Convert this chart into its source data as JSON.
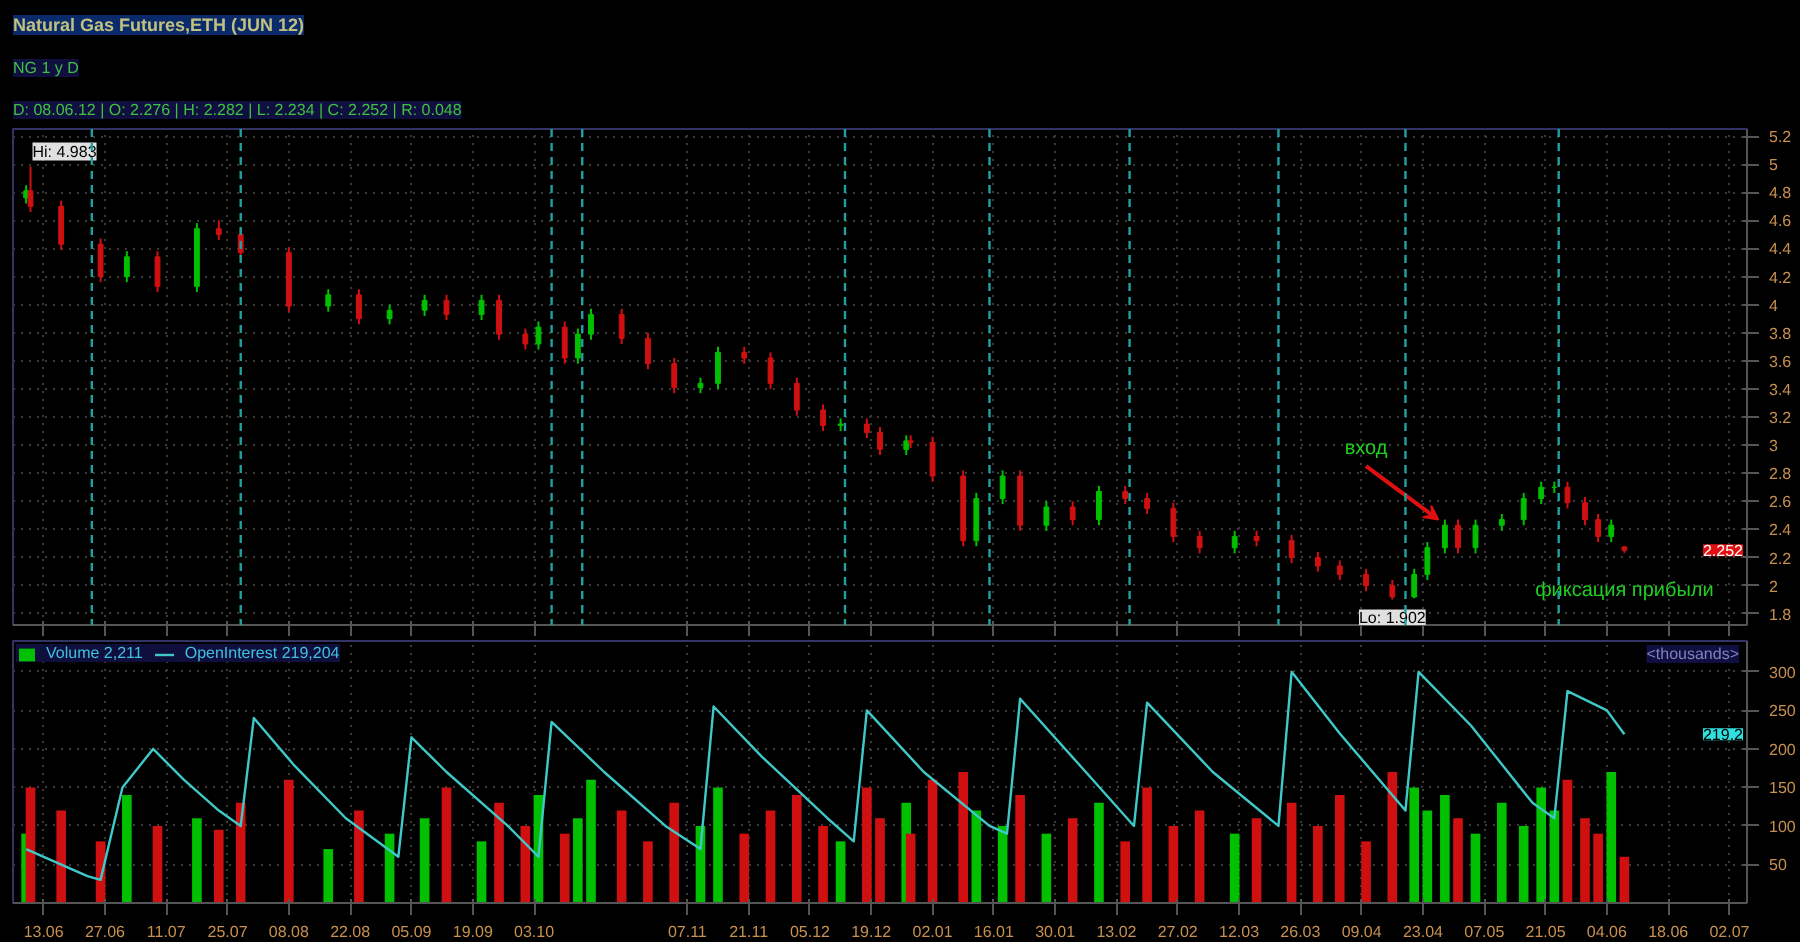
{
  "chart_data": [
    {
      "type": "candlestick",
      "title": "Natural Gas Futures,ETH (JUN 12)",
      "x": [
        "2011-06-09",
        "2011-06-10",
        "2011-06-17",
        "2011-06-26",
        "2011-07-02",
        "2011-07-09",
        "2011-07-18",
        "2011-07-23",
        "2011-07-28",
        "2011-08-08",
        "2011-08-17",
        "2011-08-24",
        "2011-08-31",
        "2011-09-08",
        "2011-09-13",
        "2011-09-21",
        "2011-09-25",
        "2011-10-01",
        "2011-10-04",
        "2011-10-10",
        "2011-10-13",
        "2011-10-16",
        "2011-10-23",
        "2011-10-29",
        "2011-11-04",
        "2011-11-10",
        "2011-11-14",
        "2011-11-20",
        "2011-11-26",
        "2011-12-02",
        "2011-12-08",
        "2011-12-12",
        "2011-12-18",
        "2011-12-21",
        "2011-12-27",
        "2011-12-28",
        "2012-01-02",
        "2012-01-09",
        "2012-01-12",
        "2012-01-18",
        "2012-01-22",
        "2012-01-28",
        "2012-02-03",
        "2012-02-09",
        "2012-02-15",
        "2012-02-20",
        "2012-02-26",
        "2012-03-03",
        "2012-03-11",
        "2012-03-16",
        "2012-03-24",
        "2012-03-30",
        "2012-04-04",
        "2012-04-10",
        "2012-04-16",
        "2012-04-21",
        "2012-04-24",
        "2012-04-28",
        "2012-05-01",
        "2012-05-05",
        "2012-05-11",
        "2012-05-16",
        "2012-05-20",
        "2012-05-23",
        "2012-05-26",
        "2012-05-30",
        "2012-06-02",
        "2012-06-05",
        "2012-06-08"
      ],
      "ohlc": [
        [
          4.76,
          4.85,
          4.72,
          4.81
        ],
        [
          4.81,
          4.983,
          4.66,
          4.7
        ],
        [
          4.7,
          4.74,
          4.39,
          4.43
        ],
        [
          4.43,
          4.47,
          4.16,
          4.2
        ],
        [
          4.2,
          4.38,
          4.16,
          4.34
        ],
        [
          4.34,
          4.38,
          4.09,
          4.13
        ],
        [
          4.13,
          4.58,
          4.09,
          4.54
        ],
        [
          4.54,
          4.6,
          4.46,
          4.5
        ],
        [
          4.5,
          4.54,
          4.33,
          4.37
        ],
        [
          4.37,
          4.41,
          3.95,
          3.99
        ],
        [
          3.99,
          4.11,
          3.95,
          4.07
        ],
        [
          4.07,
          4.11,
          3.86,
          3.9
        ],
        [
          3.9,
          4.0,
          3.86,
          3.96
        ],
        [
          3.96,
          4.07,
          3.92,
          4.03
        ],
        [
          4.03,
          4.07,
          3.89,
          3.93
        ],
        [
          3.93,
          4.07,
          3.89,
          4.03
        ],
        [
          4.03,
          4.07,
          3.75,
          3.79
        ],
        [
          3.79,
          3.83,
          3.68,
          3.72
        ],
        [
          3.72,
          3.88,
          3.68,
          3.84
        ],
        [
          3.84,
          3.88,
          3.58,
          3.62
        ],
        [
          3.62,
          3.83,
          3.58,
          3.79
        ],
        [
          3.79,
          3.97,
          3.75,
          3.93
        ],
        [
          3.93,
          3.97,
          3.72,
          3.76
        ],
        [
          3.76,
          3.8,
          3.54,
          3.58
        ],
        [
          3.58,
          3.62,
          3.37,
          3.41
        ],
        [
          3.41,
          3.48,
          3.37,
          3.44
        ],
        [
          3.44,
          3.7,
          3.4,
          3.66
        ],
        [
          3.66,
          3.7,
          3.58,
          3.62
        ],
        [
          3.62,
          3.66,
          3.4,
          3.44
        ],
        [
          3.44,
          3.48,
          3.21,
          3.25
        ],
        [
          3.25,
          3.29,
          3.1,
          3.14
        ],
        [
          3.14,
          3.19,
          3.1,
          3.15
        ],
        [
          3.15,
          3.19,
          3.05,
          3.09
        ],
        [
          3.09,
          3.13,
          2.93,
          2.97
        ],
        [
          2.97,
          3.07,
          2.93,
          3.03
        ],
        [
          3.03,
          3.07,
          2.98,
          3.02
        ],
        [
          3.02,
          3.06,
          2.74,
          2.78
        ],
        [
          2.78,
          2.82,
          2.28,
          2.32
        ],
        [
          2.32,
          2.66,
          2.28,
          2.62
        ],
        [
          2.62,
          2.82,
          2.58,
          2.78
        ],
        [
          2.78,
          2.82,
          2.39,
          2.43
        ],
        [
          2.43,
          2.6,
          2.39,
          2.56
        ],
        [
          2.56,
          2.6,
          2.43,
          2.47
        ],
        [
          2.47,
          2.71,
          2.43,
          2.67
        ],
        [
          2.67,
          2.71,
          2.58,
          2.62
        ],
        [
          2.62,
          2.66,
          2.51,
          2.55
        ],
        [
          2.55,
          2.59,
          2.31,
          2.35
        ],
        [
          2.35,
          2.39,
          2.23,
          2.27
        ],
        [
          2.27,
          2.39,
          2.23,
          2.35
        ],
        [
          2.35,
          2.39,
          2.28,
          2.32
        ],
        [
          2.32,
          2.36,
          2.16,
          2.2
        ],
        [
          2.2,
          2.24,
          2.1,
          2.14
        ],
        [
          2.14,
          2.18,
          2.04,
          2.08
        ],
        [
          2.08,
          2.12,
          1.96,
          2.0
        ],
        [
          2.0,
          2.04,
          1.902,
          1.92
        ],
        [
          1.92,
          2.12,
          1.91,
          2.08
        ],
        [
          2.08,
          2.31,
          2.04,
          2.27
        ],
        [
          2.27,
          2.47,
          2.23,
          2.43
        ],
        [
          2.43,
          2.47,
          2.23,
          2.27
        ],
        [
          2.27,
          2.47,
          2.23,
          2.43
        ],
        [
          2.43,
          2.51,
          2.39,
          2.47
        ],
        [
          2.47,
          2.66,
          2.43,
          2.62
        ],
        [
          2.62,
          2.74,
          2.58,
          2.7
        ],
        [
          2.7,
          2.74,
          2.66,
          2.7
        ],
        [
          2.7,
          2.74,
          2.55,
          2.59
        ],
        [
          2.59,
          2.63,
          2.43,
          2.47
        ],
        [
          2.47,
          2.51,
          2.31,
          2.35
        ],
        [
          2.35,
          2.47,
          2.31,
          2.43
        ],
        [
          2.276,
          2.282,
          2.234,
          2.252
        ]
      ],
      "colors": [
        "#00c000",
        "#d01010",
        "#d01010",
        "#d01010",
        "#00c000",
        "#d01010",
        "#00c000",
        "#d01010",
        "#d01010",
        "#d01010",
        "#00c000",
        "#d01010",
        "#00c000",
        "#00c000",
        "#d01010",
        "#00c000",
        "#d01010",
        "#d01010",
        "#00c000",
        "#d01010",
        "#00c000",
        "#00c000",
        "#d01010",
        "#d01010",
        "#d01010",
        "#00c000",
        "#00c000",
        "#d01010",
        "#d01010",
        "#d01010",
        "#d01010",
        "#00c000",
        "#d01010",
        "#d01010",
        "#00c000",
        "#d01010",
        "#d01010",
        "#d01010",
        "#00c000",
        "#00c000",
        "#d01010",
        "#00c000",
        "#d01010",
        "#00c000",
        "#d01010",
        "#d01010",
        "#d01010",
        "#d01010",
        "#00c000",
        "#d01010",
        "#d01010",
        "#d01010",
        "#d01010",
        "#d01010",
        "#d01010",
        "#00c000",
        "#00c000",
        "#00c000",
        "#d01010",
        "#00c000",
        "#00c000",
        "#00c000",
        "#00c000",
        "#00c000",
        "#d01010",
        "#d01010",
        "#d01010",
        "#00c000",
        "#d01010"
      ],
      "xlim": [
        "2011-06-06",
        "2012-07-06"
      ],
      "ylim": [
        1.72,
        5.25
      ],
      "yticks": [
        1.8,
        2,
        2.2,
        2.4,
        2.6,
        2.8,
        3,
        3.2,
        3.4,
        3.6,
        3.8,
        4,
        4.2,
        4.4,
        4.6,
        4.8,
        5,
        5.2
      ],
      "xticks": [
        {
          "value": "2011-06-13",
          "label": null
        },
        {
          "value": "2011-06-27",
          "label": null
        },
        {
          "value": "2011-07-11",
          "label": null
        },
        {
          "value": "2011-07-25",
          "label": null
        },
        {
          "value": "2011-08-08",
          "label": null
        },
        {
          "value": "2011-08-22",
          "label": null
        },
        {
          "value": "2011-09-05",
          "label": null
        },
        {
          "value": "2011-09-19",
          "label": null
        },
        {
          "value": "2011-10-03",
          "label": null
        },
        {
          "value": "2011-11-07",
          "label": null
        },
        {
          "value": "2011-11-21",
          "label": null
        },
        {
          "value": "2011-12-05",
          "label": null
        },
        {
          "value": "2011-12-19",
          "label": null
        },
        {
          "value": "2012-01-02",
          "label": null
        },
        {
          "value": "2012-01-16",
          "label": null
        },
        {
          "value": "2012-01-30",
          "label": null
        },
        {
          "value": "2012-02-13",
          "label": null
        },
        {
          "value": "2012-02-27",
          "label": null
        },
        {
          "value": "2012-03-12",
          "label": null
        },
        {
          "value": "2012-03-26",
          "label": null
        },
        {
          "value": "2012-04-09",
          "label": null
        },
        {
          "value": "2012-04-23",
          "label": null
        },
        {
          "value": "2012-05-07",
          "label": null
        },
        {
          "value": "2012-05-21",
          "label": null
        },
        {
          "value": "2012-06-04",
          "label": null
        },
        {
          "value": "2012-06-18",
          "label": null
        },
        {
          "value": "2012-07-02",
          "label": null
        }
      ],
      "tick_labels": "y",
      "grid": true,
      "ref_lines": [
        {
          "axis": "x",
          "value": "2011-06-24",
          "color": "#20a0a0",
          "line_style": "dashed"
        },
        {
          "axis": "x",
          "value": "2011-07-28",
          "color": "#20a0a0",
          "line_style": "dashed"
        },
        {
          "axis": "x",
          "value": "2011-10-07",
          "color": "#20a0a0",
          "line_style": "dashed"
        },
        {
          "axis": "x",
          "value": "2011-10-14",
          "color": "#20a0a0",
          "line_style": "dashed"
        },
        {
          "axis": "x",
          "value": "2011-12-13",
          "color": "#20a0a0",
          "line_style": "dashed"
        },
        {
          "axis": "x",
          "value": "2012-01-15",
          "color": "#20a0a0",
          "line_style": "dashed"
        },
        {
          "axis": "x",
          "value": "2012-02-16",
          "color": "#20a0a0",
          "line_style": "dashed"
        },
        {
          "axis": "x",
          "value": "2012-03-21",
          "color": "#20a0a0",
          "line_style": "dashed"
        },
        {
          "axis": "x",
          "value": "2012-04-19",
          "color": "#20a0a0",
          "line_style": "dashed"
        },
        {
          "axis": "x",
          "value": "2012-05-24",
          "color": "#20a0a0",
          "line_style": "dashed"
        }
      ],
      "annotations": [
        {
          "text": "Hi: 4.983",
          "x": "2011-06-10",
          "y": 4.983
        },
        {
          "text": "Lo: 1.902",
          "x": "2012-04-16",
          "y": 1.902
        },
        {
          "text": "вход",
          "x": "2012-04-28",
          "y": 2.43
        },
        {
          "text": "фиксация прибыли",
          "x": "2012-06-08",
          "y": 2.252
        },
        "NG 1 y D",
        "D: 08.06.12 | O: 2.276 | H: 2.282 | L: 2.234 | C: 2.252 | R: 0.048",
        "2.252"
      ]
    },
    {
      "type": "bar",
      "x": [
        "2011-06-09",
        "2011-06-10",
        "2011-06-17",
        "2011-06-26",
        "2011-07-02",
        "2011-07-09",
        "2011-07-18",
        "2011-07-23",
        "2011-07-28",
        "2011-08-08",
        "2011-08-17",
        "2011-08-24",
        "2011-08-31",
        "2011-09-08",
        "2011-09-13",
        "2011-09-21",
        "2011-09-25",
        "2011-10-01",
        "2011-10-04",
        "2011-10-10",
        "2011-10-13",
        "2011-10-16",
        "2011-10-23",
        "2011-10-29",
        "2011-11-04",
        "2011-11-10",
        "2011-11-14",
        "2011-11-20",
        "2011-11-26",
        "2011-12-02",
        "2011-12-08",
        "2011-12-12",
        "2011-12-18",
        "2011-12-21",
        "2011-12-27",
        "2011-12-28",
        "2012-01-02",
        "2012-01-09",
        "2012-01-12",
        "2012-01-18",
        "2012-01-22",
        "2012-01-28",
        "2012-02-03",
        "2012-02-09",
        "2012-02-15",
        "2012-02-20",
        "2012-02-26",
        "2012-03-03",
        "2012-03-11",
        "2012-03-16",
        "2012-03-24",
        "2012-03-30",
        "2012-04-04",
        "2012-04-10",
        "2012-04-16",
        "2012-04-21",
        "2012-04-24",
        "2012-04-28",
        "2012-05-01",
        "2012-05-05",
        "2012-05-11",
        "2012-05-16",
        "2012-05-20",
        "2012-05-23",
        "2012-05-26",
        "2012-05-30",
        "2012-06-02",
        "2012-06-05",
        "2012-06-08"
      ],
      "series": [
        {
          "name": "Volume 2,211",
          "type": "bar",
          "color": "#00c000",
          "colors": [
            "#00c000",
            "#d01010",
            "#d01010",
            "#d01010",
            "#00c000",
            "#d01010",
            "#00c000",
            "#d01010",
            "#d01010",
            "#d01010",
            "#00c000",
            "#d01010",
            "#00c000",
            "#00c000",
            "#d01010",
            "#00c000",
            "#d01010",
            "#d01010",
            "#00c000",
            "#d01010",
            "#00c000",
            "#00c000",
            "#d01010",
            "#d01010",
            "#d01010",
            "#00c000",
            "#00c000",
            "#d01010",
            "#d01010",
            "#d01010",
            "#d01010",
            "#00c000",
            "#d01010",
            "#d01010",
            "#00c000",
            "#d01010",
            "#d01010",
            "#d01010",
            "#00c000",
            "#00c000",
            "#d01010",
            "#00c000",
            "#d01010",
            "#00c000",
            "#d01010",
            "#d01010",
            "#d01010",
            "#d01010",
            "#00c000",
            "#d01010",
            "#d01010",
            "#d01010",
            "#d01010",
            "#d01010",
            "#d01010",
            "#00c000",
            "#00c000",
            "#00c000",
            "#d01010",
            "#00c000",
            "#00c000",
            "#00c000",
            "#00c000",
            "#00c000",
            "#d01010",
            "#d01010",
            "#d01010",
            "#00c000",
            "#d01010"
          ],
          "values": [
            90,
            150,
            120,
            80,
            140,
            100,
            110,
            95,
            130,
            160,
            70,
            120,
            90,
            110,
            150,
            80,
            130,
            100,
            140,
            90,
            110,
            160,
            120,
            80,
            130,
            100,
            150,
            90,
            120,
            140,
            100,
            80,
            150,
            110,
            130,
            90,
            160,
            170,
            120,
            100,
            140,
            90,
            110,
            130,
            80,
            150,
            100,
            120,
            90,
            110,
            130,
            100,
            140,
            80,
            170,
            150,
            120,
            140,
            110,
            90,
            130,
            100,
            150,
            120,
            160,
            110,
            90,
            170,
            60
          ]
        },
        {
          "name": "OpenInterest 219,204",
          "type": "line",
          "color": "#40c8c8",
          "x": [
            "2011-06-09",
            "2011-06-23",
            "2011-06-26",
            "2011-07-01",
            "2011-07-08",
            "2011-07-15",
            "2011-07-23",
            "2011-07-28",
            "2011-07-31",
            "2011-08-09",
            "2011-08-21",
            "2011-09-02",
            "2011-09-05",
            "2011-09-13",
            "2011-09-27",
            "2011-10-04",
            "2011-10-07",
            "2011-10-19",
            "2011-11-02",
            "2011-11-10",
            "2011-11-13",
            "2011-11-24",
            "2011-12-09",
            "2011-12-15",
            "2011-12-18",
            "2011-12-31",
            "2012-01-15",
            "2012-01-19",
            "2012-01-22",
            "2012-02-06",
            "2012-02-17",
            "2012-02-20",
            "2012-03-06",
            "2012-03-21",
            "2012-03-24",
            "2012-04-04",
            "2012-04-19",
            "2012-04-22",
            "2012-05-04",
            "2012-05-18",
            "2012-05-23",
            "2012-05-26",
            "2012-06-04",
            "2012-06-08"
          ],
          "values": [
            70,
            35,
            30,
            150,
            200,
            160,
            120,
            100,
            240,
            180,
            110,
            60,
            215,
            170,
            100,
            60,
            235,
            170,
            100,
            70,
            255,
            190,
            110,
            80,
            250,
            170,
            100,
            90,
            265,
            170,
            100,
            260,
            170,
            100,
            300,
            220,
            120,
            300,
            230,
            130,
            110,
            275,
            250,
            219
          ]
        }
      ],
      "xlim": [
        "2011-06-06",
        "2012-07-06"
      ],
      "ylim": [
        0,
        340
      ],
      "yticks": [
        50,
        100,
        150,
        200,
        250,
        300
      ],
      "xticks": [
        {
          "value": "2011-06-13",
          "label": "13.06"
        },
        {
          "value": "2011-06-27",
          "label": "27.06"
        },
        {
          "value": "2011-07-11",
          "label": "11.07"
        },
        {
          "value": "2011-07-25",
          "label": "25.07"
        },
        {
          "value": "2011-08-08",
          "label": "08.08"
        },
        {
          "value": "2011-08-22",
          "label": "22.08"
        },
        {
          "value": "2011-09-05",
          "label": "05.09"
        },
        {
          "value": "2011-09-19",
          "label": "19.09"
        },
        {
          "value": "2011-10-03",
          "label": "03.10"
        },
        {
          "value": "2011-11-07",
          "label": "07.11"
        },
        {
          "value": "2011-11-21",
          "label": "21.11"
        },
        {
          "value": "2011-12-05",
          "label": "05.12"
        },
        {
          "value": "2011-12-19",
          "label": "19.12"
        },
        {
          "value": "2012-01-02",
          "label": "02.01"
        },
        {
          "value": "2012-01-16",
          "label": "16.01"
        },
        {
          "value": "2012-01-30",
          "label": "30.01"
        },
        {
          "value": "2012-02-13",
          "label": "13.02"
        },
        {
          "value": "2012-02-27",
          "label": "27.02"
        },
        {
          "value": "2012-03-12",
          "label": "12.03"
        },
        {
          "value": "2012-03-26",
          "label": "26.03"
        },
        {
          "value": "2012-04-09",
          "label": "09.04"
        },
        {
          "value": "2012-04-23",
          "label": "23.04"
        },
        {
          "value": "2012-05-07",
          "label": "07.05"
        },
        {
          "value": "2012-05-21",
          "label": "21.05"
        },
        {
          "value": "2012-06-04",
          "label": "04.06"
        },
        {
          "value": "2012-06-18",
          "label": "18.06"
        },
        {
          "value": "2012-07-02",
          "label": "02.07"
        }
      ],
      "grid": true,
      "legend": "top left",
      "annotations": [
        "219.2",
        "<thousands>"
      ]
    }
  ]
}
